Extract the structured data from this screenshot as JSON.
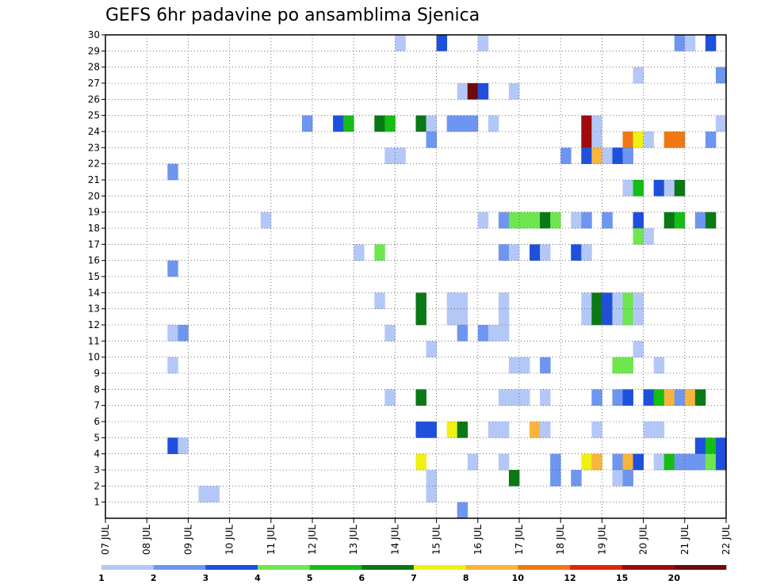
{
  "chart_data": {
    "type": "heatmap",
    "title": "GEFS 6hr padavine po ansamblima Sjenica",
    "xlabel": "",
    "ylabel": "",
    "y_categories": [
      "1",
      "2",
      "3",
      "4",
      "5",
      "6",
      "7",
      "8",
      "9",
      "10",
      "11",
      "12",
      "13",
      "14",
      "15",
      "16",
      "17",
      "18",
      "19",
      "20",
      "21",
      "22",
      "23",
      "24",
      "25",
      "26",
      "27",
      "28",
      "29",
      "30"
    ],
    "x_tick_labels": [
      "07 JUL",
      "08 JUL",
      "09 JUL",
      "10 JUL",
      "11 JUL",
      "12 JUL",
      "13 JUL",
      "14 JUL",
      "15 JUL",
      "16 JUL",
      "17 JUL",
      "18 JUL",
      "19 JUL",
      "20 JUL",
      "21 JUL",
      "22 JUL"
    ],
    "x_range_days": [
      0,
      15
    ],
    "time_step_hours": 6,
    "grid": true,
    "color_scale": {
      "labels": [
        "1",
        "2",
        "3",
        "4",
        "5",
        "6",
        "7",
        "8",
        "10",
        "12",
        "15",
        "20"
      ],
      "colors": [
        "#b4c8f8",
        "#6e96f0",
        "#1e50dc",
        "#6ee650",
        "#14be14",
        "#0a7814",
        "#f0f014",
        "#f8b43c",
        "#f07814",
        "#dc280a",
        "#a00a0a",
        "#6e0a0a"
      ]
    },
    "cells": [
      {
        "member": 30,
        "step": 29,
        "level": 1
      },
      {
        "member": 30,
        "step": 33,
        "level": 3
      },
      {
        "member": 30,
        "step": 37,
        "level": 1
      },
      {
        "member": 30,
        "step": 56,
        "level": 2
      },
      {
        "member": 30,
        "step": 57,
        "level": 1
      },
      {
        "member": 30,
        "step": 59,
        "level": 3
      },
      {
        "member": 28,
        "step": 52,
        "level": 1
      },
      {
        "member": 28,
        "step": 60,
        "level": 2
      },
      {
        "member": 27,
        "step": 35,
        "level": 1
      },
      {
        "member": 27,
        "step": 36,
        "level": 12
      },
      {
        "member": 27,
        "step": 37,
        "level": 3
      },
      {
        "member": 27,
        "step": 40,
        "level": 1
      },
      {
        "member": 25,
        "step": 20,
        "level": 2
      },
      {
        "member": 25,
        "step": 23,
        "level": 3
      },
      {
        "member": 25,
        "step": 24,
        "level": 5
      },
      {
        "member": 25,
        "step": 27,
        "level": 6
      },
      {
        "member": 25,
        "step": 28,
        "level": 5
      },
      {
        "member": 25,
        "step": 31,
        "level": 6
      },
      {
        "member": 25,
        "step": 32,
        "level": 1
      },
      {
        "member": 25,
        "step": 34,
        "level": 2
      },
      {
        "member": 25,
        "step": 35,
        "level": 2
      },
      {
        "member": 25,
        "step": 36,
        "level": 2
      },
      {
        "member": 25,
        "step": 38,
        "level": 1
      },
      {
        "member": 25,
        "step": 47,
        "level": 11
      },
      {
        "member": 25,
        "step": 48,
        "level": 1
      },
      {
        "member": 25,
        "step": 60,
        "level": 1
      },
      {
        "member": 24,
        "step": 32,
        "level": 2
      },
      {
        "member": 24,
        "step": 47,
        "level": 11
      },
      {
        "member": 24,
        "step": 48,
        "level": 1
      },
      {
        "member": 24,
        "step": 51,
        "level": 9
      },
      {
        "member": 24,
        "step": 52,
        "level": 7
      },
      {
        "member": 24,
        "step": 53,
        "level": 1
      },
      {
        "member": 24,
        "step": 55,
        "level": 9
      },
      {
        "member": 24,
        "step": 56,
        "level": 9
      },
      {
        "member": 24,
        "step": 59,
        "level": 2
      },
      {
        "member": 23,
        "step": 28,
        "level": 1
      },
      {
        "member": 23,
        "step": 29,
        "level": 1
      },
      {
        "member": 23,
        "step": 45,
        "level": 2
      },
      {
        "member": 23,
        "step": 47,
        "level": 3
      },
      {
        "member": 23,
        "step": 48,
        "level": 8
      },
      {
        "member": 23,
        "step": 49,
        "level": 1
      },
      {
        "member": 23,
        "step": 50,
        "level": 3
      },
      {
        "member": 23,
        "step": 51,
        "level": 2
      },
      {
        "member": 22,
        "step": 7,
        "level": 2
      },
      {
        "member": 21,
        "step": 51,
        "level": 1
      },
      {
        "member": 21,
        "step": 52,
        "level": 5
      },
      {
        "member": 21,
        "step": 54,
        "level": 3
      },
      {
        "member": 21,
        "step": 55,
        "level": 1
      },
      {
        "member": 21,
        "step": 56,
        "level": 6
      },
      {
        "member": 19,
        "step": 16,
        "level": 1
      },
      {
        "member": 19,
        "step": 37,
        "level": 1
      },
      {
        "member": 19,
        "step": 39,
        "level": 2
      },
      {
        "member": 19,
        "step": 40,
        "level": 4
      },
      {
        "member": 19,
        "step": 41,
        "level": 4
      },
      {
        "member": 19,
        "step": 42,
        "level": 4
      },
      {
        "member": 19,
        "step": 43,
        "level": 6
      },
      {
        "member": 19,
        "step": 44,
        "level": 4
      },
      {
        "member": 19,
        "step": 46,
        "level": 1
      },
      {
        "member": 19,
        "step": 47,
        "level": 2
      },
      {
        "member": 19,
        "step": 49,
        "level": 2
      },
      {
        "member": 19,
        "step": 52,
        "level": 3
      },
      {
        "member": 19,
        "step": 55,
        "level": 6
      },
      {
        "member": 19,
        "step": 56,
        "level": 5
      },
      {
        "member": 19,
        "step": 58,
        "level": 2
      },
      {
        "member": 19,
        "step": 59,
        "level": 6
      },
      {
        "member": 18,
        "step": 52,
        "level": 4
      },
      {
        "member": 18,
        "step": 53,
        "level": 1
      },
      {
        "member": 17,
        "step": 25,
        "level": 1
      },
      {
        "member": 17,
        "step": 27,
        "level": 4
      },
      {
        "member": 17,
        "step": 39,
        "level": 2
      },
      {
        "member": 17,
        "step": 40,
        "level": 1
      },
      {
        "member": 17,
        "step": 42,
        "level": 3
      },
      {
        "member": 17,
        "step": 43,
        "level": 1
      },
      {
        "member": 17,
        "step": 46,
        "level": 3
      },
      {
        "member": 17,
        "step": 47,
        "level": 1
      },
      {
        "member": 16,
        "step": 7,
        "level": 2
      },
      {
        "member": 14,
        "step": 27,
        "level": 1
      },
      {
        "member": 14,
        "step": 31,
        "level": 6
      },
      {
        "member": 14,
        "step": 34,
        "level": 1
      },
      {
        "member": 14,
        "step": 35,
        "level": 1
      },
      {
        "member": 14,
        "step": 39,
        "level": 1
      },
      {
        "member": 14,
        "step": 47,
        "level": 1
      },
      {
        "member": 14,
        "step": 48,
        "level": 6
      },
      {
        "member": 14,
        "step": 49,
        "level": 3
      },
      {
        "member": 14,
        "step": 50,
        "level": 1
      },
      {
        "member": 14,
        "step": 51,
        "level": 4
      },
      {
        "member": 14,
        "step": 52,
        "level": 1
      },
      {
        "member": 13,
        "step": 31,
        "level": 6
      },
      {
        "member": 13,
        "step": 34,
        "level": 1
      },
      {
        "member": 13,
        "step": 35,
        "level": 1
      },
      {
        "member": 13,
        "step": 39,
        "level": 1
      },
      {
        "member": 13,
        "step": 47,
        "level": 1
      },
      {
        "member": 13,
        "step": 48,
        "level": 6
      },
      {
        "member": 13,
        "step": 49,
        "level": 3
      },
      {
        "member": 13,
        "step": 50,
        "level": 1
      },
      {
        "member": 13,
        "step": 51,
        "level": 4
      },
      {
        "member": 13,
        "step": 52,
        "level": 1
      },
      {
        "member": 12,
        "step": 7,
        "level": 1
      },
      {
        "member": 12,
        "step": 8,
        "level": 2
      },
      {
        "member": 12,
        "step": 28,
        "level": 1
      },
      {
        "member": 12,
        "step": 35,
        "level": 2
      },
      {
        "member": 12,
        "step": 37,
        "level": 2
      },
      {
        "member": 12,
        "step": 38,
        "level": 1
      },
      {
        "member": 12,
        "step": 39,
        "level": 1
      },
      {
        "member": 11,
        "step": 32,
        "level": 1
      },
      {
        "member": 11,
        "step": 52,
        "level": 1
      },
      {
        "member": 10,
        "step": 7,
        "level": 1
      },
      {
        "member": 10,
        "step": 40,
        "level": 1
      },
      {
        "member": 10,
        "step": 41,
        "level": 1
      },
      {
        "member": 10,
        "step": 43,
        "level": 2
      },
      {
        "member": 10,
        "step": 50,
        "level": 4
      },
      {
        "member": 10,
        "step": 51,
        "level": 4
      },
      {
        "member": 10,
        "step": 54,
        "level": 1
      },
      {
        "member": 8,
        "step": 28,
        "level": 1
      },
      {
        "member": 8,
        "step": 31,
        "level": 6
      },
      {
        "member": 8,
        "step": 39,
        "level": 1
      },
      {
        "member": 8,
        "step": 40,
        "level": 1
      },
      {
        "member": 8,
        "step": 41,
        "level": 1
      },
      {
        "member": 8,
        "step": 43,
        "level": 1
      },
      {
        "member": 8,
        "step": 48,
        "level": 2
      },
      {
        "member": 8,
        "step": 50,
        "level": 2
      },
      {
        "member": 8,
        "step": 51,
        "level": 3
      },
      {
        "member": 8,
        "step": 53,
        "level": 3
      },
      {
        "member": 8,
        "step": 54,
        "level": 5
      },
      {
        "member": 8,
        "step": 55,
        "level": 8
      },
      {
        "member": 8,
        "step": 56,
        "level": 2
      },
      {
        "member": 8,
        "step": 57,
        "level": 8
      },
      {
        "member": 8,
        "step": 58,
        "level": 6
      },
      {
        "member": 6,
        "step": 31,
        "level": 3
      },
      {
        "member": 6,
        "step": 32,
        "level": 3
      },
      {
        "member": 6,
        "step": 34,
        "level": 7
      },
      {
        "member": 6,
        "step": 35,
        "level": 6
      },
      {
        "member": 6,
        "step": 38,
        "level": 1
      },
      {
        "member": 6,
        "step": 39,
        "level": 1
      },
      {
        "member": 6,
        "step": 42,
        "level": 8
      },
      {
        "member": 6,
        "step": 43,
        "level": 1
      },
      {
        "member": 6,
        "step": 48,
        "level": 1
      },
      {
        "member": 6,
        "step": 53,
        "level": 1
      },
      {
        "member": 6,
        "step": 54,
        "level": 1
      },
      {
        "member": 5,
        "step": 7,
        "level": 3
      },
      {
        "member": 5,
        "step": 8,
        "level": 1
      },
      {
        "member": 5,
        "step": 58,
        "level": 3
      },
      {
        "member": 5,
        "step": 59,
        "level": 5
      },
      {
        "member": 5,
        "step": 60,
        "level": 3
      },
      {
        "member": 4,
        "step": 31,
        "level": 7
      },
      {
        "member": 4,
        "step": 36,
        "level": 1
      },
      {
        "member": 4,
        "step": 39,
        "level": 1
      },
      {
        "member": 4,
        "step": 44,
        "level": 2
      },
      {
        "member": 4,
        "step": 47,
        "level": 7
      },
      {
        "member": 4,
        "step": 48,
        "level": 8
      },
      {
        "member": 4,
        "step": 50,
        "level": 2
      },
      {
        "member": 4,
        "step": 51,
        "level": 8
      },
      {
        "member": 4,
        "step": 52,
        "level": 3
      },
      {
        "member": 4,
        "step": 54,
        "level": 1
      },
      {
        "member": 4,
        "step": 55,
        "level": 5
      },
      {
        "member": 4,
        "step": 56,
        "level": 2
      },
      {
        "member": 4,
        "step": 57,
        "level": 2
      },
      {
        "member": 4,
        "step": 58,
        "level": 2
      },
      {
        "member": 4,
        "step": 59,
        "level": 4
      },
      {
        "member": 4,
        "step": 60,
        "level": 3
      },
      {
        "member": 3,
        "step": 32,
        "level": 1
      },
      {
        "member": 3,
        "step": 40,
        "level": 6
      },
      {
        "member": 3,
        "step": 44,
        "level": 2
      },
      {
        "member": 3,
        "step": 46,
        "level": 2
      },
      {
        "member": 3,
        "step": 50,
        "level": 1
      },
      {
        "member": 3,
        "step": 51,
        "level": 2
      },
      {
        "member": 2,
        "step": 10,
        "level": 1
      },
      {
        "member": 2,
        "step": 11,
        "level": 1
      },
      {
        "member": 2,
        "step": 32,
        "level": 1
      },
      {
        "member": 1,
        "step": 35,
        "level": 2
      }
    ]
  }
}
